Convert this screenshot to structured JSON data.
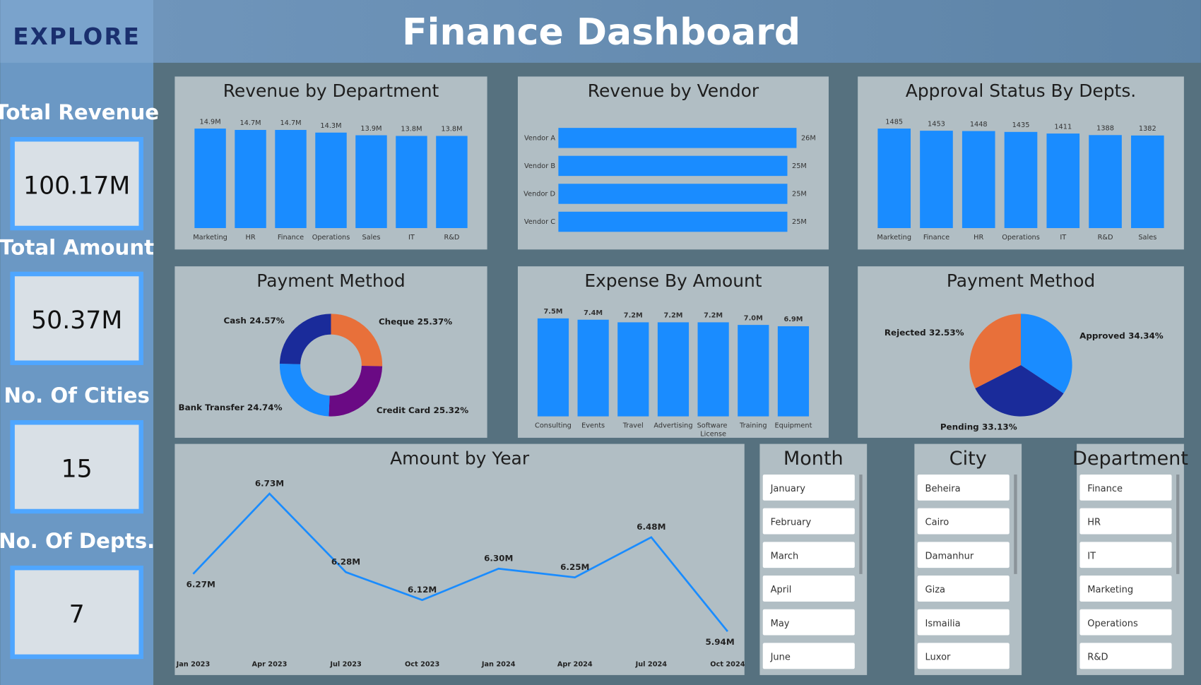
{
  "header": {
    "logo": "EXPLORE",
    "title": "Finance Dashboard"
  },
  "kpis": [
    {
      "label": "Total Revenue",
      "value": "100.17M"
    },
    {
      "label": "Total Amount",
      "value": "50.37M"
    },
    {
      "label": "No. Of Cities",
      "value": "15"
    },
    {
      "label": "No. Of Depts.",
      "value": "7"
    }
  ],
  "chart_data": [
    {
      "type": "bar",
      "title": "Revenue by Department",
      "categories": [
        "Marketing",
        "HR",
        "Finance",
        "Operations",
        "Sales",
        "IT",
        "R&D"
      ],
      "values": [
        14.9,
        14.7,
        14.7,
        14.3,
        13.9,
        13.8,
        13.8
      ],
      "value_labels": [
        "14.9M",
        "14.7M",
        "14.7M",
        "14.3M",
        "13.9M",
        "13.8M",
        "13.8M"
      ],
      "color": "#1a8cff"
    },
    {
      "type": "bar",
      "horizontal": true,
      "title": "Revenue by Vendor",
      "categories": [
        "Vendor A",
        "Vendor B",
        "Vendor D",
        "Vendor C"
      ],
      "values": [
        26,
        25,
        25,
        25
      ],
      "value_labels": [
        "26M",
        "25M",
        "25M",
        "25M"
      ],
      "color": "#1a8cff"
    },
    {
      "type": "bar",
      "title": "Approval Status By Depts.",
      "categories": [
        "Marketing",
        "Finance",
        "HR",
        "Operations",
        "IT",
        "R&D",
        "Sales"
      ],
      "values": [
        1485,
        1453,
        1448,
        1435,
        1411,
        1388,
        1382
      ],
      "color": "#1a8cff"
    },
    {
      "type": "donut",
      "title": "Payment Method",
      "categories": [
        "Cheque",
        "Credit Card",
        "Bank Transfer",
        "Cash"
      ],
      "values": [
        25.37,
        25.32,
        24.74,
        24.57
      ],
      "value_labels": [
        "25.37%",
        "25.32%",
        "24.74%",
        "24.57%"
      ],
      "colors": [
        "#e8703a",
        "#6a0a84",
        "#1a8cff",
        "#1a2b9a"
      ]
    },
    {
      "type": "bar",
      "title": "Expense By Amount",
      "categories": [
        "Consulting",
        "Events",
        "Travel",
        "Advertising",
        "Software License",
        "Training",
        "Equipment"
      ],
      "values": [
        7.5,
        7.4,
        7.2,
        7.2,
        7.2,
        7.0,
        6.9
      ],
      "value_labels": [
        "7.5M",
        "7.4M",
        "7.2M",
        "7.2M",
        "7.2M",
        "7.0M",
        "6.9M"
      ],
      "color": "#1a8cff"
    },
    {
      "type": "pie",
      "title": "Payment Method",
      "categories": [
        "Approved",
        "Pending",
        "Rejected"
      ],
      "values": [
        34.34,
        33.13,
        32.53
      ],
      "value_labels": [
        "34.34%",
        "33.13%",
        "32.53%"
      ],
      "colors": [
        "#1a8cff",
        "#1a2b9a",
        "#e8703a"
      ]
    },
    {
      "type": "line",
      "title": "Amount by Year",
      "categories": [
        "Jan 2023",
        "Apr 2023",
        "Jul 2023",
        "Oct 2023",
        "Jan 2024",
        "Apr 2024",
        "Jul 2024",
        "Oct 2024"
      ],
      "values": [
        6.27,
        6.73,
        6.28,
        6.12,
        6.3,
        6.25,
        6.48,
        5.94
      ],
      "value_labels": [
        "6.27M",
        "6.73M",
        "6.28M",
        "6.12M",
        "6.30M",
        "6.25M",
        "6.48M",
        "5.94M"
      ],
      "color": "#1a8cff"
    }
  ],
  "slicers": [
    {
      "title": "Month",
      "items": [
        "January",
        "February",
        "March",
        "April",
        "May",
        "June"
      ]
    },
    {
      "title": "City",
      "items": [
        "Beheira",
        "Cairo",
        "Damanhur",
        "Giza",
        "Ismailia",
        "Luxor"
      ]
    },
    {
      "title": "Department",
      "items": [
        "Finance",
        "HR",
        "IT",
        "Marketing",
        "Operations",
        "R&D"
      ]
    }
  ]
}
